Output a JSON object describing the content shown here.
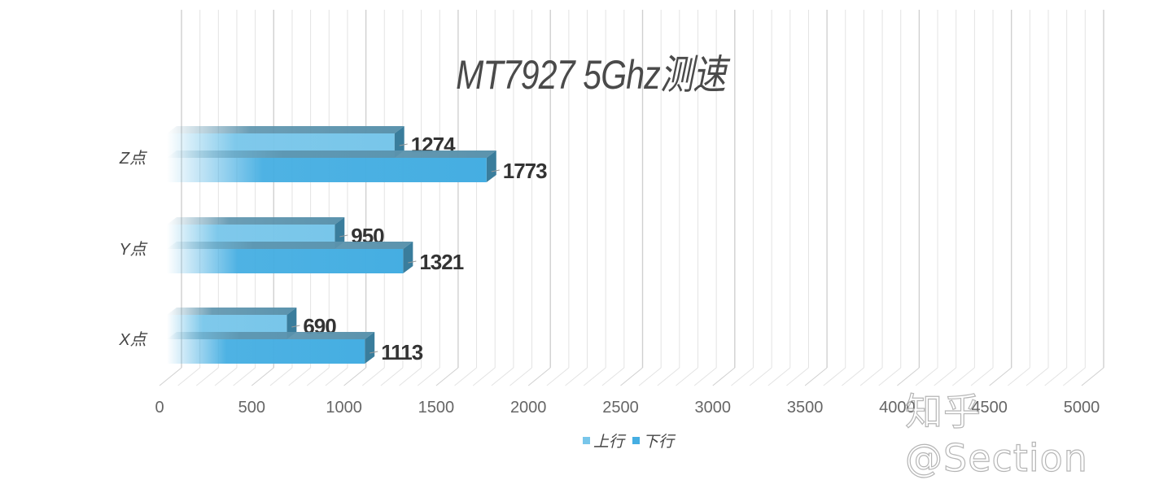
{
  "chart_data": {
    "type": "bar",
    "orientation": "horizontal",
    "style": "3d-clustered",
    "title": "MT7927 5Ghz测速",
    "categories": [
      "X点",
      "Y点",
      "Z点"
    ],
    "series": [
      {
        "name": "上行",
        "values": [
          690,
          950,
          1274
        ],
        "color": "#78c6ea"
      },
      {
        "name": "下行",
        "values": [
          1113,
          1321,
          1773
        ],
        "color": "#45aee2"
      }
    ],
    "xlabel": "",
    "ylabel": "",
    "xlim": [
      0,
      5000
    ],
    "x_ticks": [
      "0",
      "500",
      "1000",
      "1500",
      "2000",
      "2500",
      "3000",
      "3500",
      "4000",
      "4500",
      "5000"
    ],
    "minor_grid_step": 100,
    "grid": true,
    "legend_position": "bottom"
  },
  "watermark": "知乎 @Section",
  "colors": {
    "up_front": "#78c6ea",
    "down_front": "#45aee2",
    "top_face": "#5b93ad",
    "side_face": "#3a7d9c",
    "grid": "#e3e3e3",
    "grid_major": "#d0d0d0",
    "text": "#444444",
    "label": "#333333"
  }
}
